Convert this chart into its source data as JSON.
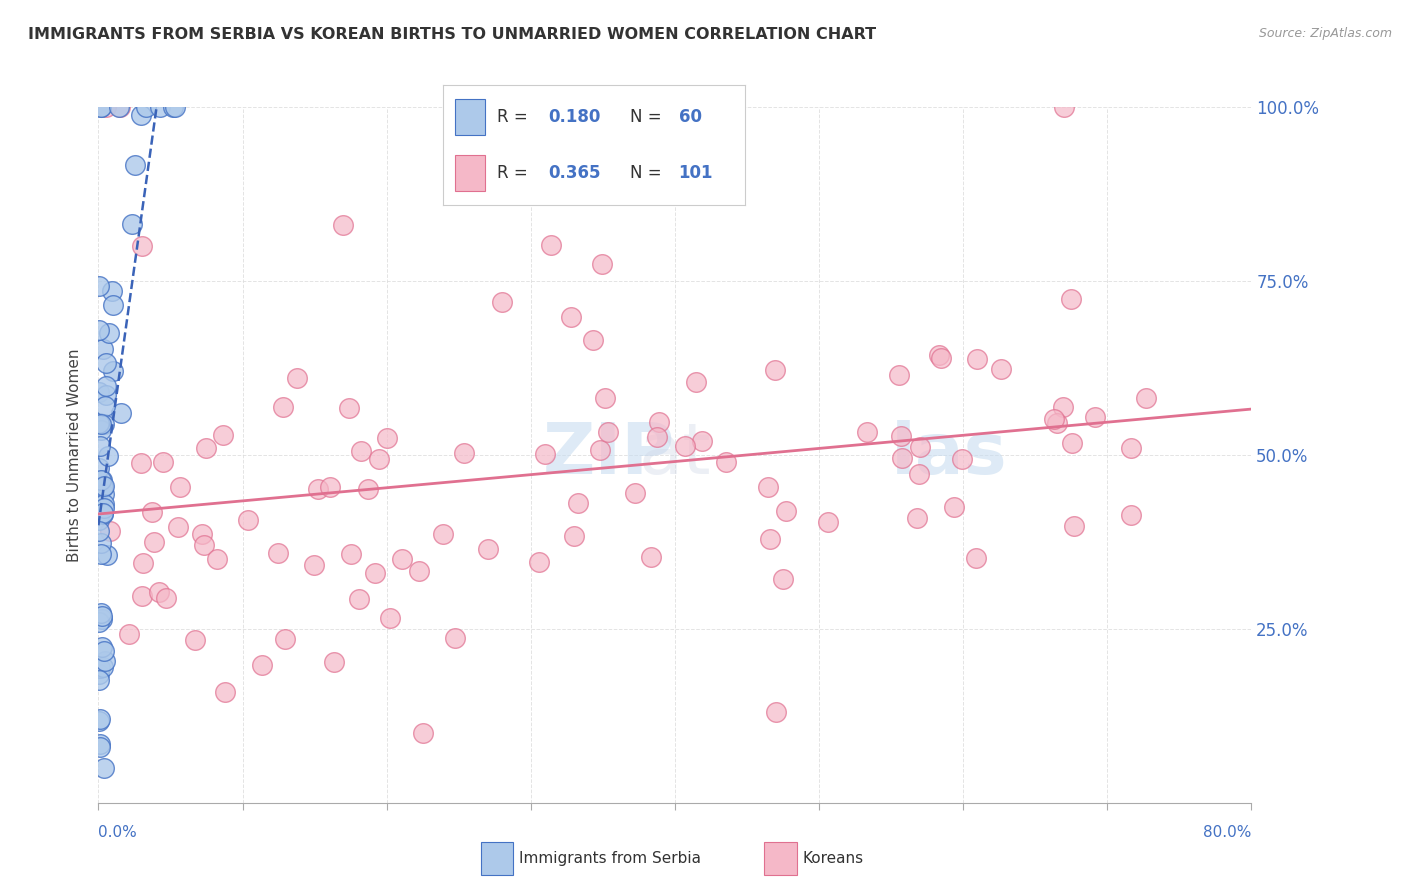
{
  "title": "IMMIGRANTS FROM SERBIA VS KOREAN BIRTHS TO UNMARRIED WOMEN CORRELATION CHART",
  "source": "Source: ZipAtlas.com",
  "ylabel": "Births to Unmarried Women",
  "xmin": 0.0,
  "xmax": 80.0,
  "ymin": 0.0,
  "ymax": 100.0,
  "serbia_R": 0.18,
  "serbia_N": 60,
  "korean_R": 0.365,
  "korean_N": 101,
  "serbia_color": "#adc9ea",
  "korean_color": "#f5b8c8",
  "serbia_edge_color": "#4472c4",
  "korean_edge_color": "#e07090",
  "serbia_trend_color": "#3a63b8",
  "korean_trend_color": "#e07090",
  "background_color": "#ffffff",
  "grid_color": "#dddddd",
  "legend_border_color": "#cccccc",
  "right_tick_color": "#4472c4",
  "bottom_tick_color": "#4472c4",
  "watermark_color": "#c8ddf0"
}
